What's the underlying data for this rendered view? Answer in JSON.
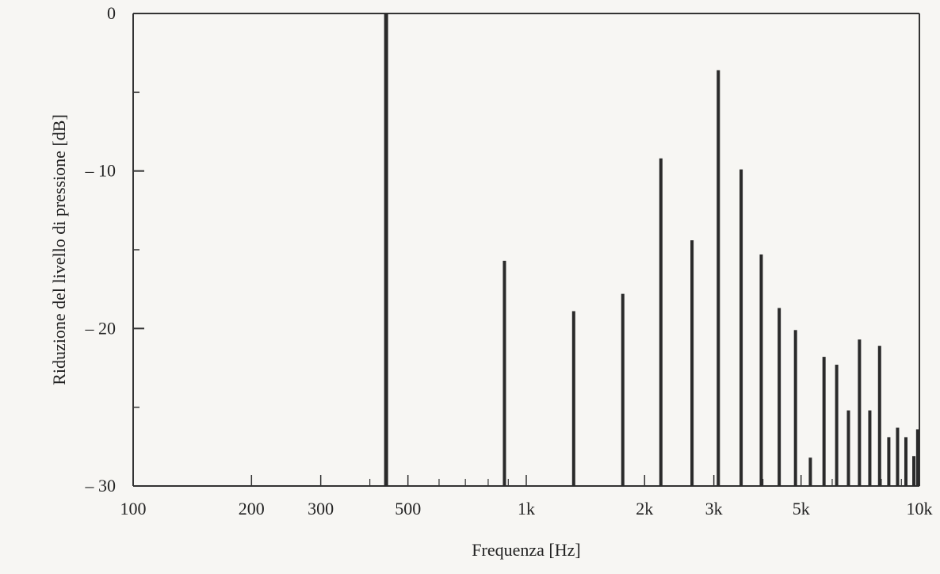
{
  "chart_data": {
    "type": "bar",
    "title": "",
    "xlabel": "Frequenza  [Hz]",
    "ylabel": "Riduzione del livello di pressione  [dB]",
    "x_scale": "log",
    "xlim": [
      100,
      10000
    ],
    "ylim": [
      -30,
      0
    ],
    "x_ticks": [
      {
        "value": 100,
        "label": "100"
      },
      {
        "value": 200,
        "label": "200"
      },
      {
        "value": 300,
        "label": "300"
      },
      {
        "value": 500,
        "label": "500"
      },
      {
        "value": 1000,
        "label": "1k"
      },
      {
        "value": 2000,
        "label": "2k"
      },
      {
        "value": 3000,
        "label": "3k"
      },
      {
        "value": 5000,
        "label": "5k"
      },
      {
        "value": 10000,
        "label": "10k"
      }
    ],
    "y_ticks": [
      {
        "value": 0,
        "label": "0"
      },
      {
        "value": -10,
        "label": "– 10"
      },
      {
        "value": -20,
        "label": "– 20"
      },
      {
        "value": -30,
        "label": "– 30"
      }
    ],
    "grid": false,
    "series": [
      {
        "x": [
          440,
          880,
          1320,
          1760,
          2200,
          2640,
          3080,
          3520,
          3960,
          4400,
          4840,
          5280,
          5720,
          6160,
          6600,
          7040,
          7480,
          7920,
          8360,
          8800,
          9240,
          9680,
          9900
        ],
        "values": [
          0,
          -15.7,
          -18.9,
          -17.8,
          -9.2,
          -14.4,
          -3.6,
          -9.9,
          -15.3,
          -18.7,
          -20.1,
          -28.2,
          -21.8,
          -22.3,
          -25.2,
          -20.7,
          -25.2,
          -21.1,
          -26.9,
          -26.3,
          -26.9,
          -28.1,
          -26.4
        ]
      }
    ],
    "bar_color": "#2a2a2a"
  }
}
